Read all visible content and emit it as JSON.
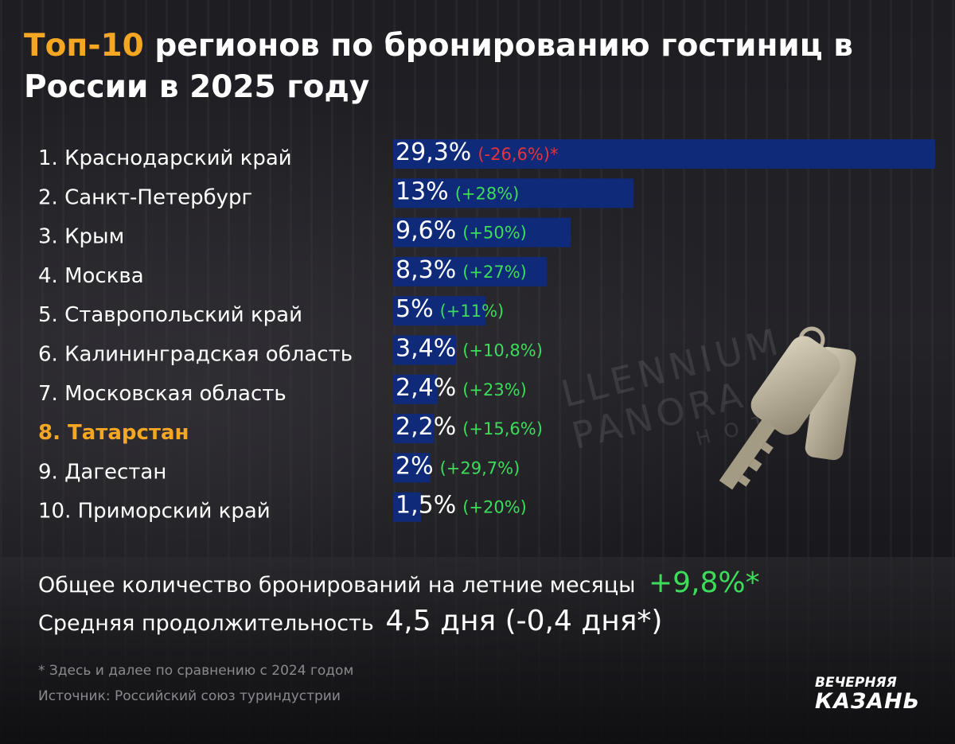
{
  "title": {
    "accent": "Топ-10",
    "rest": " регионов по бронированию гостиниц в России в 2025 году"
  },
  "watermark": {
    "line1": "LLENNIUM PANORA",
    "line2": "HOTELS"
  },
  "chart_data": {
    "type": "bar",
    "orientation": "horizontal",
    "categories": [
      "1. Краснодарский край",
      "2. Санкт-Петербург",
      "3. Крым",
      "4. Москва",
      "5. Ставропольский край",
      "6. Калининградская область",
      "7. Московская область",
      "8. Татарстан",
      "9. Дагестан",
      "10. Приморский край"
    ],
    "values": [
      29.3,
      13,
      9.6,
      8.3,
      5,
      3.4,
      2.4,
      2.2,
      2,
      1.5
    ],
    "value_labels": [
      "29,3%",
      "13%",
      "9,6%",
      "8,3%",
      "5%",
      "3,4%",
      "2,4%",
      "2,2%",
      "2%",
      "1,5%"
    ],
    "change_labels": [
      "(-26,6%)*",
      "(+28%)",
      "(+50%)",
      "(+27%)",
      "(+11%)",
      "(+10,8%)",
      "(+23%)",
      "(+15,6%)",
      "(+29,7%)",
      "(+20%)"
    ],
    "changes": [
      -26.6,
      28,
      50,
      27,
      11,
      10.8,
      23,
      15.6,
      29.7,
      20
    ],
    "highlight_index": 7,
    "colors": {
      "bar": "#0f2a78",
      "positive": "#3ddc5a",
      "negative": "#e8323c",
      "highlight": "#f5a623",
      "label": "#ffffff"
    }
  },
  "summary": {
    "bookings_label": "Общее количество бронирований на летние месяцы",
    "bookings_value": "+9,8%*",
    "duration_label": "Средняя продолжительность",
    "duration_value": "4,5 дня (-0,4 дня*)"
  },
  "notes": {
    "footnote": "* Здесь и далее по сравнению с 2024 годом",
    "source": "Источник: Российский союз туриндустрии"
  },
  "logo": {
    "line1": "ВЕЧЕРНЯЯ",
    "line2": "КАЗАНЬ"
  }
}
